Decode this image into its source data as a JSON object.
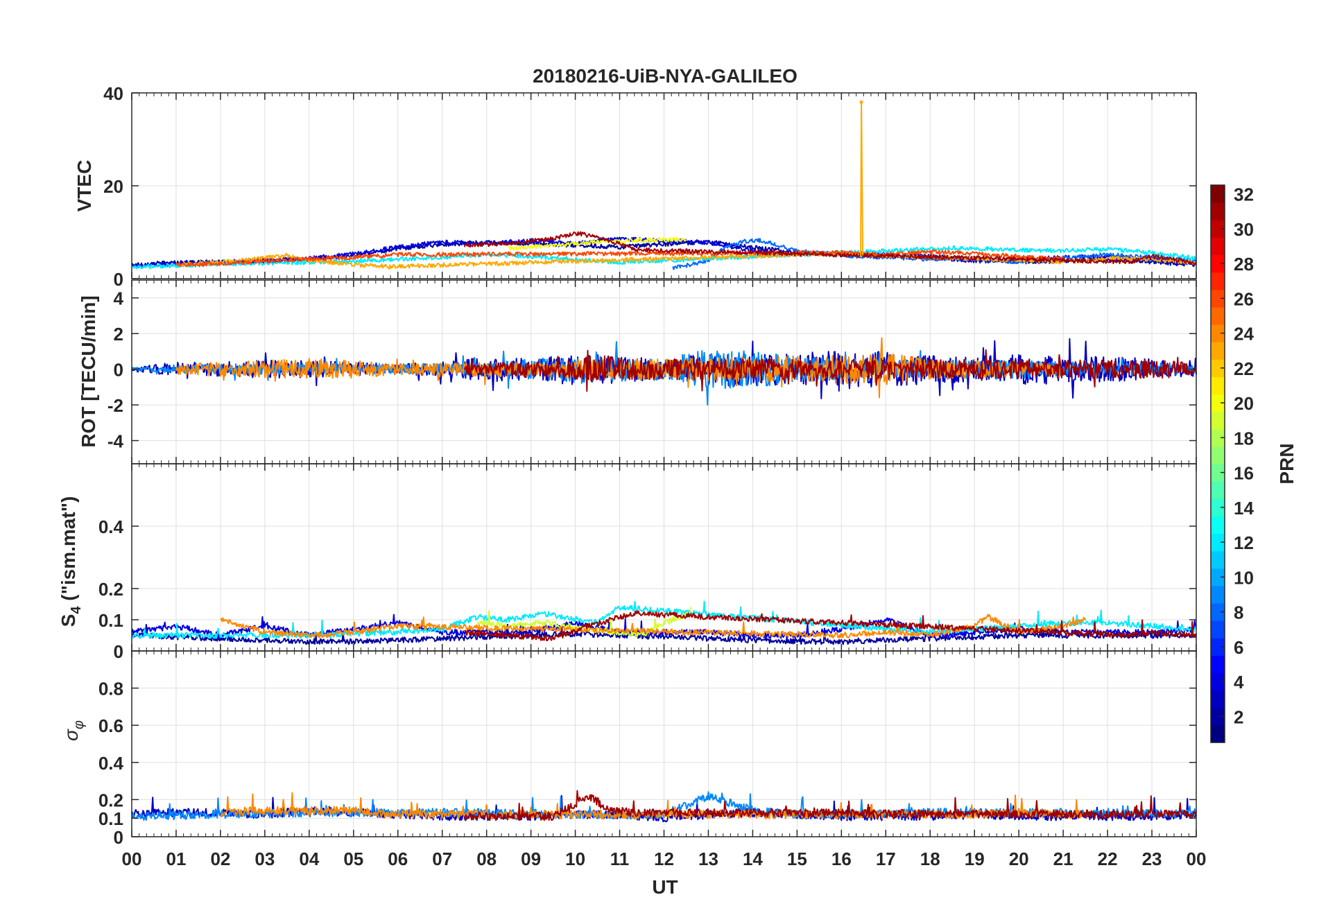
{
  "chart_data": {
    "type": "line",
    "title": "20180216-UiB-NYA-GALILEO",
    "xlabel": "UT",
    "x_ticks": [
      "00",
      "01",
      "02",
      "03",
      "04",
      "05",
      "06",
      "07",
      "08",
      "09",
      "10",
      "11",
      "12",
      "13",
      "14",
      "15",
      "16",
      "17",
      "18",
      "19",
      "20",
      "21",
      "22",
      "23",
      "00"
    ],
    "xlim": [
      0,
      24
    ],
    "grid": true,
    "colorbar": {
      "label": "PRN",
      "ticks": [
        "2",
        "4",
        "6",
        "8",
        "10",
        "12",
        "14",
        "16",
        "18",
        "20",
        "22",
        "24",
        "26",
        "28",
        "30",
        "32"
      ],
      "range": [
        1,
        32
      ],
      "colormap": "jet"
    },
    "panels": [
      {
        "id": "vtec",
        "ylabel": "VTEC",
        "ylim": [
          0,
          40
        ],
        "y_ticks": [
          "0",
          "20",
          "40"
        ],
        "spike": {
          "x": 16.45,
          "y": 38,
          "prn": 23
        },
        "series": [
          {
            "prn": 2,
            "x": [
              0,
              1,
              2,
              3,
              4,
              5,
              6,
              7,
              8,
              9,
              10,
              11,
              12,
              13,
              14,
              15,
              16,
              17,
              18,
              19,
              20,
              21,
              22,
              23,
              24
            ],
            "y": [
              3,
              3.5,
              3.6,
              3.9,
              4.2,
              5,
              6.5,
              7.4,
              7.8,
              7.6,
              7.2,
              6.8,
              7.4,
              7.9,
              6.8,
              5.6,
              5.2,
              5,
              4.8,
              4.2,
              3.6,
              3.8,
              4.2,
              3.6,
              3
            ]
          },
          {
            "prn": 4,
            "x": [
              0,
              1,
              2,
              3,
              4,
              5,
              6,
              7,
              8,
              9,
              10,
              11,
              12,
              13,
              14,
              15,
              16,
              17,
              18,
              19,
              20,
              21,
              22,
              23,
              24
            ],
            "y": [
              2.8,
              3.2,
              3.4,
              3.8,
              4.4,
              5.3,
              6.8,
              7.9,
              7.6,
              8.2,
              7.6,
              8.6,
              8.2,
              7.8,
              6,
              5.2,
              5.6,
              5.2,
              4.6,
              3.8,
              4,
              4.6,
              4.8,
              4.2,
              3.2
            ]
          },
          {
            "prn": 8,
            "x": [
              12.2,
              12.6,
              13,
              13.4,
              13.8,
              14.2,
              15,
              16,
              17,
              18,
              19,
              20,
              21,
              22,
              23,
              24
            ],
            "y": [
              2.4,
              3,
              4,
              6.8,
              8,
              8.2,
              6,
              5,
              4.6,
              4.2,
              4.4,
              3.6,
              4.4,
              5.2,
              4.6,
              3.8
            ]
          },
          {
            "prn": 12,
            "x": [
              0,
              2,
              4,
              6,
              7,
              8,
              9,
              10,
              11,
              18.5,
              20,
              21,
              22,
              23,
              24
            ],
            "y": [
              2.5,
              3.2,
              3.5,
              4.2,
              4.6,
              5.2,
              4.8,
              4.2,
              3.5,
              6.6,
              6.2,
              6,
              6.4,
              5.6,
              4.4
            ]
          },
          {
            "prn": 20,
            "x": [
              8.5,
              9.5,
              10.5,
              11.5,
              12.5
            ],
            "y": [
              6.5,
              7.2,
              7.8,
              8.3,
              8.5
            ]
          },
          {
            "prn": 23,
            "x": [
              1,
              2,
              3,
              3.5,
              4,
              5,
              5.8,
              16,
              17,
              18,
              19,
              20,
              21,
              22,
              23,
              24
            ],
            "y": [
              3,
              3.5,
              4.5,
              5,
              4,
              3,
              2.6,
              5.4,
              5,
              4.5,
              4.2,
              4,
              3.6,
              4.4,
              4.2,
              3.4
            ]
          },
          {
            "prn": 26,
            "x": [
              1,
              2,
              3,
              4,
              5,
              6,
              6.4,
              16,
              17,
              18,
              19,
              20,
              21
            ],
            "y": [
              3,
              3.2,
              3.8,
              4.2,
              4.6,
              5.2,
              5.2,
              5.6,
              5.2,
              5.8,
              5.4,
              4.8,
              4.2
            ]
          },
          {
            "prn": 31,
            "x": [
              7.5,
              8.5,
              9.5,
              10,
              10.5,
              11,
              11.4,
              22.5,
              23,
              23.5,
              24
            ],
            "y": [
              7.2,
              7.6,
              8.6,
              9.8,
              9,
              7.4,
              6.2,
              3.6,
              4.8,
              4.2,
              3.4
            ]
          }
        ]
      },
      {
        "id": "rot",
        "ylabel": "ROT [TECU/min]",
        "ylim": [
          -5.3,
          5
        ],
        "y_ticks": [
          "-4",
          "-2",
          "0",
          "2",
          "4"
        ],
        "series": [
          {
            "prn": 3,
            "x": [
              0,
              1,
              2,
              3,
              4,
              5,
              6,
              7,
              8,
              9,
              10,
              11,
              12,
              13,
              14,
              15,
              16,
              17,
              18,
              19,
              20,
              21,
              22,
              23,
              24
            ],
            "amplitude": [
              0.1,
              0.4,
              0.4,
              0.5,
              0.5,
              0.4,
              0.3,
              0.4,
              0.7,
              0.6,
              0.9,
              0.8,
              0.5,
              0.9,
              1,
              0.8,
              1.1,
              1,
              0.8,
              0.7,
              0.9,
              0.8,
              0.7,
              0.6,
              0.4
            ]
          },
          {
            "prn": 9,
            "x": [
              0,
              2,
              4,
              6,
              8,
              10,
              12,
              13,
              14,
              15,
              16,
              18,
              20,
              22,
              24
            ],
            "amplitude": [
              0.1,
              0.3,
              0.3,
              0.3,
              0.4,
              0.8,
              0.6,
              1.2,
              1.1,
              0.7,
              0.6,
              0.5,
              0.5,
              0.4,
              0.3
            ]
          },
          {
            "prn": 24,
            "x": [
              1,
              2,
              3,
              4,
              5,
              6,
              16,
              17,
              18,
              19,
              20,
              21
            ],
            "amplitude": [
              0.3,
              0.4,
              0.5,
              0.6,
              0.5,
              0.3,
              0.8,
              0.9,
              0.6,
              0.5,
              0.4,
              0.3
            ]
          },
          {
            "prn": 31,
            "x": [
              7.5,
              8.5,
              9.5,
              10.5,
              11.4,
              22.5,
              23.5,
              24
            ],
            "amplitude": [
              0.3,
              0.4,
              0.4,
              0.8,
              0.6,
              0.5,
              0.5,
              0.3
            ]
          }
        ]
      },
      {
        "id": "s4",
        "ylabel": "S4 (\"ism.mat\")",
        "ylabel_main": "S",
        "ylabel_sub": "4",
        "ylabel_rest": " (\"ism.mat\")",
        "ylim": [
          0,
          0.6
        ],
        "y_ticks": [
          "0",
          "0.1",
          "0.2",
          "0.4"
        ],
        "series": [
          {
            "prn": 2,
            "x": [
              0,
              1,
              2,
              3,
              4,
              5,
              6,
              7,
              8,
              9,
              10,
              11,
              12,
              13,
              14,
              15,
              16,
              17,
              18,
              19,
              20,
              21,
              22,
              23,
              24
            ],
            "y": [
              0.05,
              0.045,
              0.04,
              0.035,
              0.03,
              0.03,
              0.035,
              0.04,
              0.045,
              0.05,
              0.055,
              0.05,
              0.045,
              0.04,
              0.035,
              0.03,
              0.03,
              0.035,
              0.04,
              0.045,
              0.05,
              0.05,
              0.05,
              0.05,
              0.05
            ]
          },
          {
            "prn": 4,
            "x": [
              0,
              1,
              2,
              3,
              4,
              5,
              6,
              7,
              8,
              9,
              10,
              11,
              12,
              13,
              14,
              15,
              16,
              17,
              18,
              19,
              20,
              21,
              22,
              23,
              24
            ],
            "y": [
              0.06,
              0.08,
              0.05,
              0.08,
              0.05,
              0.07,
              0.09,
              0.06,
              0.06,
              0.06,
              0.09,
              0.06,
              0.06,
              0.06,
              0.05,
              0.05,
              0.07,
              0.1,
              0.05,
              0.06,
              0.07,
              0.06,
              0.06,
              0.06,
              0.07
            ]
          },
          {
            "prn": 12,
            "x": [
              0,
              2,
              4,
              6,
              7,
              7.8,
              8.5,
              9.3,
              10.5,
              11,
              18,
              19,
              20,
              21,
              22,
              23,
              24
            ],
            "y": [
              0.05,
              0.05,
              0.05,
              0.06,
              0.07,
              0.11,
              0.1,
              0.12,
              0.09,
              0.14,
              0.06,
              0.07,
              0.08,
              0.09,
              0.09,
              0.08,
              0.07
            ]
          },
          {
            "prn": 19,
            "x": [
              7.8,
              8.5,
              9.3,
              11.5,
              12,
              12.6
            ],
            "y": [
              0.09,
              0.08,
              0.09,
              0.05,
              0.09,
              0.12
            ]
          },
          {
            "prn": 24,
            "x": [
              2,
              2.5,
              3,
              4,
              5,
              6,
              16,
              17,
              18,
              19,
              19.3,
              20,
              21,
              21.5
            ],
            "y": [
              0.1,
              0.08,
              0.06,
              0.05,
              0.06,
              0.08,
              0.05,
              0.06,
              0.05,
              0.08,
              0.11,
              0.06,
              0.08,
              0.1
            ]
          },
          {
            "prn": 31,
            "x": [
              7.5,
              8.5,
              9.5,
              10.3,
              10.8,
              11.3,
              22.5,
              23,
              24
            ],
            "y": [
              0.06,
              0.05,
              0.04,
              0.08,
              0.1,
              0.12,
              0.05,
              0.06,
              0.05
            ]
          }
        ]
      },
      {
        "id": "sigma",
        "ylabel": "σ φ",
        "ylabel_main": "σ",
        "ylabel_sub": "φ",
        "ylim": [
          0,
          1
        ],
        "y_ticks": [
          "0",
          "0.1",
          "0.2",
          "0.4",
          "0.6",
          "0.8"
        ],
        "series": [
          {
            "prn": 3,
            "x": [
              0,
              1,
              2,
              3,
              4,
              5,
              6,
              7,
              8,
              9,
              10,
              11,
              12,
              13,
              14,
              15,
              16,
              17,
              18,
              19,
              20,
              21,
              22,
              23,
              24
            ],
            "y": [
              0.12,
              0.13,
              0.13,
              0.12,
              0.14,
              0.13,
              0.12,
              0.11,
              0.11,
              0.11,
              0.12,
              0.12,
              0.1,
              0.12,
              0.13,
              0.12,
              0.11,
              0.11,
              0.11,
              0.12,
              0.11,
              0.11,
              0.11,
              0.11,
              0.12
            ]
          },
          {
            "prn": 9,
            "x": [
              0,
              2,
              4,
              6,
              8,
              10,
              12,
              13,
              14,
              15,
              16,
              18,
              20,
              22,
              24
            ],
            "y": [
              0.11,
              0.12,
              0.13,
              0.13,
              0.13,
              0.12,
              0.12,
              0.22,
              0.14,
              0.12,
              0.12,
              0.13,
              0.13,
              0.13,
              0.12
            ]
          },
          {
            "prn": 24,
            "x": [
              2,
              3,
              4,
              5,
              6,
              16,
              17,
              18,
              19,
              20,
              21,
              21.5
            ],
            "y": [
              0.13,
              0.14,
              0.14,
              0.14,
              0.12,
              0.12,
              0.12,
              0.12,
              0.12,
              0.13,
              0.12,
              0.12
            ]
          },
          {
            "prn": 31,
            "x": [
              7.5,
              8.5,
              9.5,
              10.3,
              10.8,
              11.3,
              22.5,
              23.5,
              24
            ],
            "y": [
              0.11,
              0.11,
              0.11,
              0.22,
              0.14,
              0.13,
              0.12,
              0.12,
              0.12
            ]
          }
        ]
      }
    ]
  }
}
